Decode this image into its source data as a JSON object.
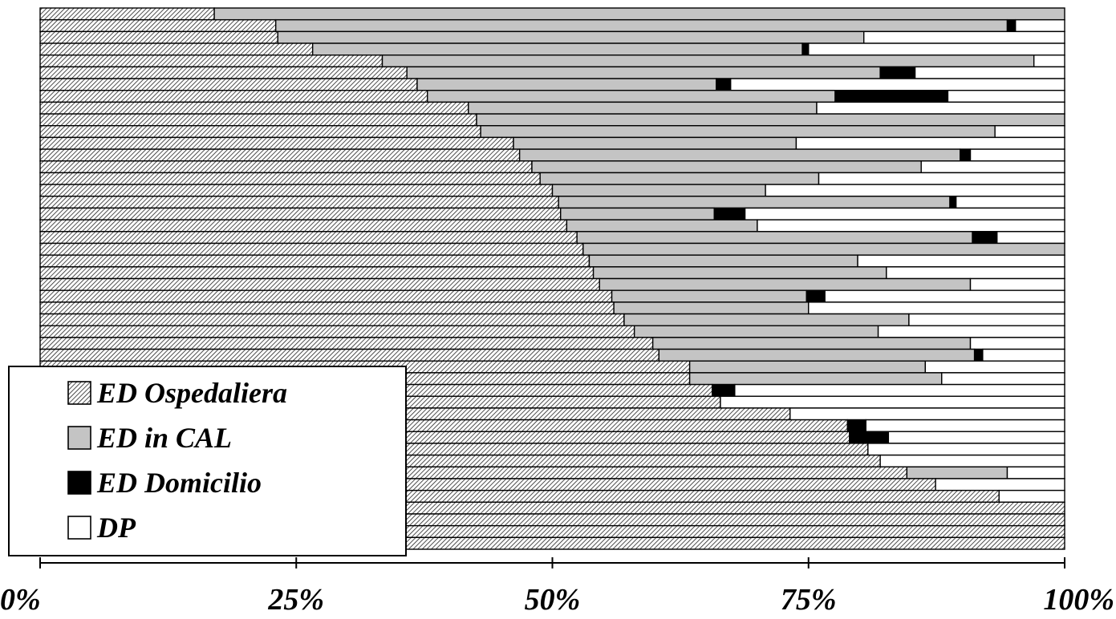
{
  "chart_data": {
    "type": "bar",
    "orientation": "horizontal",
    "stacked": true,
    "normalized": true,
    "xlim": [
      0,
      100
    ],
    "x_ticks": [
      "0%",
      "25%",
      "50%",
      "75%",
      "100%"
    ],
    "legend_position": "bottom-left",
    "series": [
      {
        "name": "ED Ospedaliera",
        "fill": "hatched",
        "values": [
          17.0,
          23.0,
          23.2,
          26.6,
          33.4,
          35.8,
          36.8,
          37.8,
          41.8,
          42.6,
          43.0,
          46.2,
          46.8,
          48.0,
          48.8,
          50.0,
          50.6,
          50.8,
          51.4,
          52.4,
          53.0,
          53.6,
          54.0,
          54.6,
          55.8,
          56.0,
          57.0,
          58.0,
          59.8,
          60.4,
          63.4,
          63.4,
          65.6,
          66.4,
          73.2,
          78.8,
          79.0,
          80.8,
          82.0,
          84.6,
          87.4,
          93.6,
          100.0,
          100.0,
          100.0,
          100.0
        ]
      },
      {
        "name": "ED in CAL",
        "fill": "#c4c4c4",
        "values": [
          83.0,
          71.4,
          57.2,
          47.8,
          63.6,
          46.2,
          29.2,
          39.8,
          34.0,
          57.4,
          50.2,
          27.6,
          43.0,
          38.0,
          27.2,
          20.8,
          38.2,
          15.0,
          18.6,
          38.6,
          47.0,
          26.2,
          28.6,
          36.2,
          19.0,
          19.0,
          27.8,
          23.8,
          31.0,
          30.8,
          23.0,
          24.6,
          0.0,
          0.0,
          0.0,
          0.0,
          0.0,
          0.0,
          0.0,
          9.8,
          0.0,
          0.0,
          0.0,
          0.0,
          0.0,
          0.0
        ]
      },
      {
        "name": "ED Domicilio",
        "fill": "#000000",
        "values": [
          0.0,
          0.8,
          0.0,
          0.6,
          0.0,
          3.4,
          1.4,
          11.0,
          0.0,
          0.0,
          0.0,
          0.0,
          1.0,
          0.0,
          0.0,
          0.0,
          0.6,
          3.0,
          0.0,
          2.4,
          0.0,
          0.0,
          0.0,
          0.0,
          1.8,
          0.0,
          0.0,
          0.0,
          0.0,
          0.8,
          0.0,
          0.0,
          2.2,
          0.0,
          0.0,
          1.8,
          3.8,
          0.0,
          0.0,
          0.0,
          0.0,
          0.0,
          0.0,
          0.0,
          0.0,
          0.0
        ]
      },
      {
        "name": "DP",
        "fill": "#ffffff",
        "values": [
          0.0,
          4.8,
          19.6,
          25.0,
          3.0,
          14.6,
          32.6,
          11.4,
          24.2,
          0.0,
          6.8,
          26.2,
          9.2,
          14.0,
          24.0,
          29.2,
          10.6,
          31.2,
          30.0,
          6.6,
          0.0,
          20.2,
          17.4,
          9.2,
          23.4,
          25.0,
          15.2,
          18.2,
          9.2,
          8.0,
          13.6,
          12.0,
          32.2,
          33.6,
          26.8,
          19.4,
          17.2,
          19.2,
          18.0,
          5.6,
          12.6,
          6.4,
          0.0,
          0.0,
          0.0,
          0.0
        ]
      }
    ]
  }
}
